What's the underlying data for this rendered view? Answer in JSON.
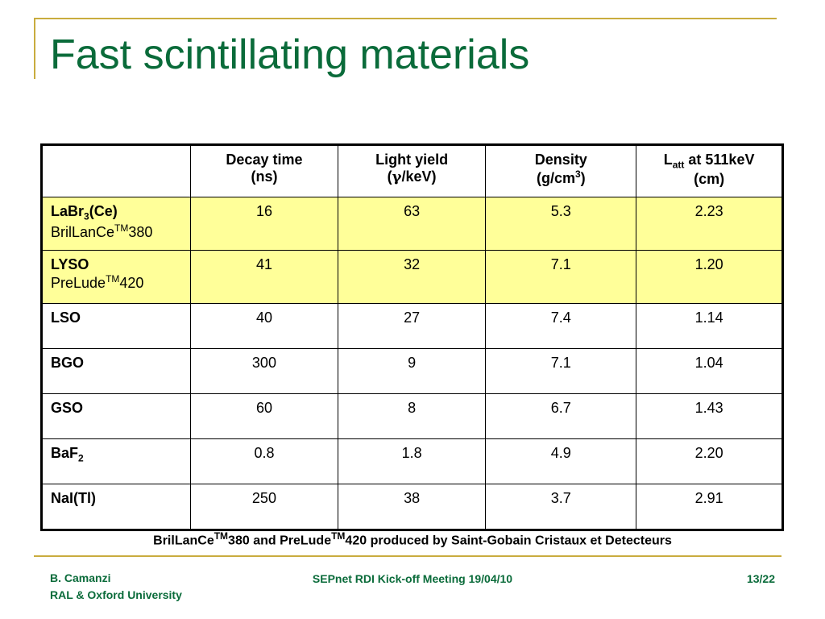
{
  "slide": {
    "title": "Fast scintillating materials"
  },
  "table": {
    "headers": {
      "decay_line1": "Decay time",
      "decay_line2": "(ns)",
      "yield_line1": "Light yield",
      "yield_line2_pre": "(",
      "yield_gamma": "γ",
      "yield_line2_post": "/keV)",
      "density_line1": "Density",
      "density_line2_pre": "(g/cm",
      "density_sup": "3",
      "density_line2_post": ")",
      "latt_L": "L",
      "latt_sub": "att",
      "latt_rest": " at 511keV",
      "latt_line2": "(cm)"
    },
    "rows": [
      {
        "name": "LaBr",
        "name_sub": "3",
        "name_post": "(Ce)",
        "brand": "BrilLanCe",
        "brand_tm": "TM",
        "brand_post": "380",
        "decay": "16",
        "yield": "63",
        "density": "5.3",
        "latt": "2.23"
      },
      {
        "name": "LYSO",
        "brand": "PreLude",
        "brand_tm": "TM",
        "brand_post": "420",
        "decay": "41",
        "yield": "32",
        "density": "7.1",
        "latt": "1.20"
      },
      {
        "name": "LSO",
        "decay": "40",
        "yield": "27",
        "density": "7.4",
        "latt": "1.14"
      },
      {
        "name": "BGO",
        "decay": "300",
        "yield": "9",
        "density": "7.1",
        "latt": "1.04"
      },
      {
        "name": "GSO",
        "decay": "60",
        "yield": "8",
        "density": "6.7",
        "latt": "1.43"
      },
      {
        "name": "BaF",
        "name_sub": "2",
        "decay": "0.8",
        "yield": "1.8",
        "density": "4.9",
        "latt": "2.20"
      },
      {
        "name": "NaI(Tl)",
        "decay": "250",
        "yield": "38",
        "density": "3.7",
        "latt": "2.91"
      }
    ]
  },
  "footnote": {
    "part1": "BrilLanCe",
    "tm1": "TM",
    "part2": "380 and PreLude",
    "tm2": "TM",
    "part3": "420 produced by Saint-Gobain Cristaux et Detecteurs"
  },
  "footer": {
    "author": "B. Camanzi",
    "affiliation": "RAL & Oxford University",
    "event": "SEPnet RDI Kick-off Meeting 19/04/10",
    "page": "13/22"
  },
  "colors": {
    "title": "#0a6b3a",
    "accent_line": "#c9ac3e",
    "highlight_row": "#ffff99"
  }
}
